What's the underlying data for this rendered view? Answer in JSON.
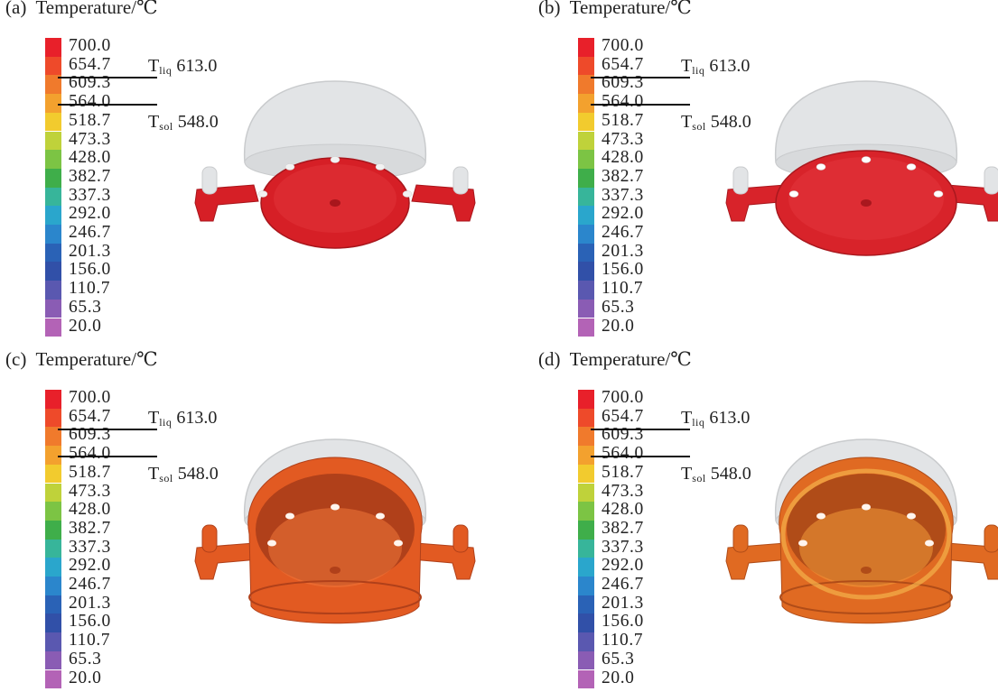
{
  "legend": {
    "ticks": [
      "700.0",
      "654.7",
      "609.3",
      "564.0",
      "518.7",
      "473.3",
      "428.0",
      "382.7",
      "337.3",
      "292.0",
      "246.7",
      "201.3",
      "156.0",
      "110.7",
      "65.3",
      "20.0"
    ],
    "colors": [
      "#e8202a",
      "#ee4a2a",
      "#f07a2c",
      "#f3a12e",
      "#f2cb2e",
      "#bfd23a",
      "#7cc444",
      "#3fae4a",
      "#37b59a",
      "#2aa6cc",
      "#2b86cc",
      "#2a62b6",
      "#3150a8",
      "#5a58b0",
      "#8a5cb4",
      "#b363b6"
    ]
  },
  "markers": [
    {
      "symbol": "T",
      "subscript": "liq",
      "value": "613.0"
    },
    {
      "symbol": "T",
      "subscript": "sol",
      "value": "548.0"
    }
  ],
  "panels": [
    {
      "label": "(a)",
      "title": "Temperature/℃",
      "stage": "a"
    },
    {
      "label": "(b)",
      "title": "Temperature/℃",
      "stage": "b"
    },
    {
      "label": "(c)",
      "title": "Temperature/℃",
      "stage": "c"
    },
    {
      "label": "(d)",
      "title": "Temperature/℃",
      "stage": "d"
    }
  ]
}
